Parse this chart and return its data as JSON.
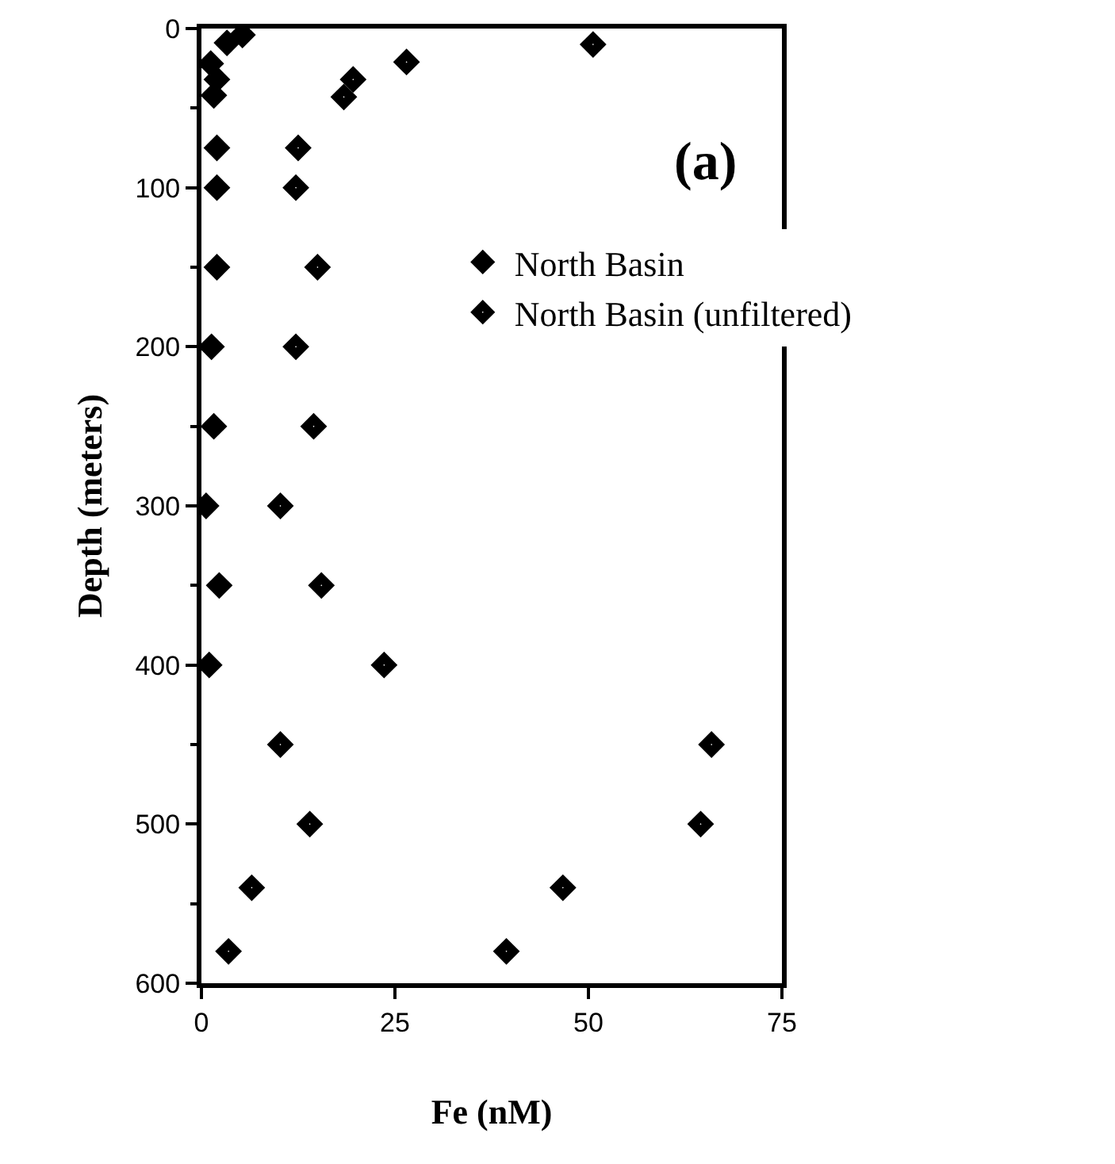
{
  "chart_data": {
    "type": "scatter",
    "xlabel": "Fe (nM)",
    "ylabel": "Depth (meters)",
    "annotations": [
      "(a)"
    ],
    "xlim": [
      0,
      75
    ],
    "xticks": [
      0,
      25,
      50,
      75
    ],
    "ylim": [
      600,
      0
    ],
    "yticks": [
      0,
      100,
      200,
      300,
      400,
      500,
      600
    ],
    "grid": false,
    "legend": "right",
    "marker": "diamond",
    "series": [
      {
        "name": "North Basin",
        "color": "#000000",
        "x": [
          5.3,
          3.3,
          1.2,
          2,
          1.6,
          2,
          2,
          2,
          1.3,
          1.6,
          0.6,
          2.3,
          1
        ],
        "values": [
          4,
          9,
          22,
          32,
          42,
          75,
          100,
          150,
          200,
          250,
          300,
          350,
          400
        ]
      },
      {
        "name": "North Basin (unfiltered)",
        "color": "#000000",
        "marker": "diamond-dot",
        "x": [
          50.6,
          26.5,
          19.6,
          18.4,
          12.5,
          12.2,
          15,
          12.2,
          14.5,
          10.2,
          15.5,
          23.6,
          10.2,
          14,
          6.5,
          3.5,
          65.9,
          64.5,
          46.7,
          39.4
        ],
        "values": [
          10,
          21,
          32,
          43,
          75,
          100,
          150,
          200,
          250,
          300,
          350,
          400,
          450,
          500,
          540,
          580,
          450,
          500,
          540,
          580
        ]
      }
    ]
  }
}
